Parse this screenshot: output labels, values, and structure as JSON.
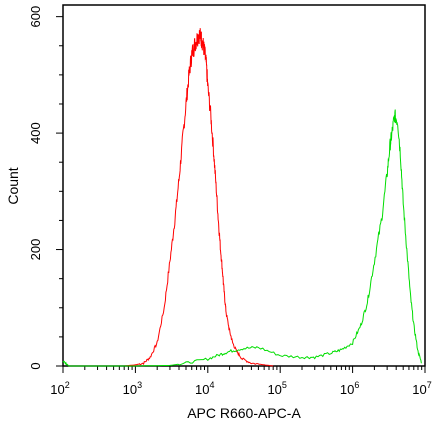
{
  "chart_data": {
    "type": "line",
    "title": "",
    "xlabel": "APC R660-APC-A",
    "ylabel": "Count",
    "xscale": "log",
    "xlim": [
      100,
      10000000
    ],
    "ylim": [
      0,
      620
    ],
    "x_ticks": [
      {
        "base": "10",
        "exp": "2"
      },
      {
        "base": "10",
        "exp": "3"
      },
      {
        "base": "10",
        "exp": "4"
      },
      {
        "base": "10",
        "exp": "5"
      },
      {
        "base": "10",
        "exp": "6"
      },
      {
        "base": "10",
        "exp": "7"
      }
    ],
    "y_ticks": [
      "0",
      "200",
      "400",
      "600"
    ],
    "grid": false,
    "legend": "none",
    "series": [
      {
        "color": "#ff0000",
        "x": [
          700,
          1000,
          1300,
          1600,
          2000,
          2500,
          3000,
          3500,
          4000,
          4500,
          5000,
          5500,
          6000,
          6500,
          7000,
          7500,
          8000,
          8500,
          9000,
          9500,
          10000,
          11000,
          12000,
          13000,
          14000,
          15000,
          16000,
          17000,
          18000,
          20000,
          22000,
          25000,
          30000,
          40000,
          60000,
          80000
        ],
        "y": [
          0,
          2,
          5,
          15,
          40,
          100,
          180,
          250,
          320,
          390,
          450,
          500,
          535,
          550,
          560,
          570,
          565,
          555,
          540,
          520,
          480,
          430,
          370,
          310,
          250,
          200,
          160,
          120,
          90,
          60,
          40,
          25,
          12,
          5,
          2,
          0
        ]
      },
      {
        "color": "#00dd00",
        "x": [
          100,
          120,
          300,
          1000,
          3000,
          5000,
          10000,
          15000,
          20000,
          30000,
          50000,
          100000,
          200000,
          300000,
          500000,
          700000,
          1000000,
          1300000,
          1600000,
          2000000,
          2500000,
          3000000,
          3300000,
          3500000,
          3800000,
          4200000,
          4600000,
          5000000,
          5600000,
          6300000,
          7000000,
          8000000,
          9000000
        ],
        "y": [
          10,
          0,
          0,
          0,
          1,
          5,
          12,
          20,
          25,
          30,
          32,
          18,
          15,
          15,
          22,
          28,
          40,
          70,
          110,
          180,
          250,
          330,
          380,
          400,
          430,
          420,
          360,
          280,
          200,
          120,
          70,
          25,
          5
        ]
      }
    ]
  }
}
